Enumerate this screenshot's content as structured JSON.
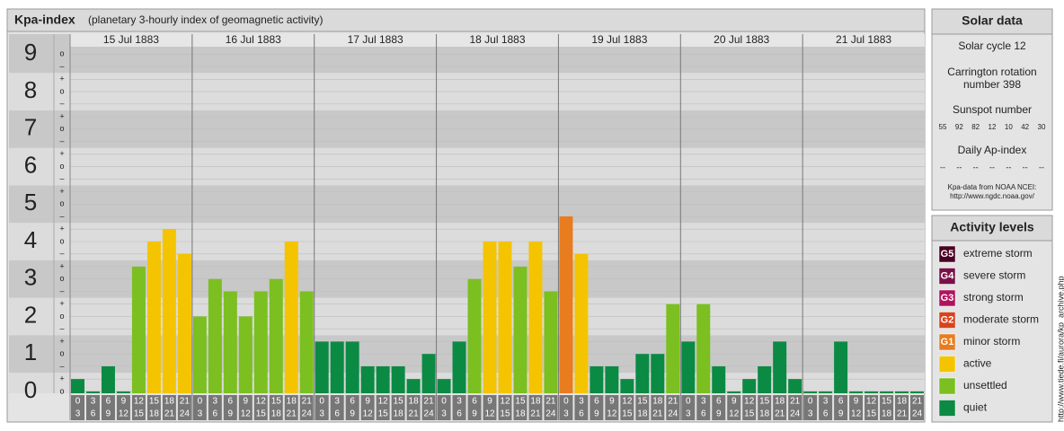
{
  "chart_data": {
    "type": "bar",
    "title": "Kpa-index",
    "subtitle": "(planetary 3-hourly index of geomagnetic activity)",
    "days": [
      "15 Jul 1883",
      "16 Jul 1883",
      "17 Jul 1883",
      "18 Jul 1883",
      "19 Jul 1883",
      "20 Jul 1883",
      "21 Jul 1883"
    ],
    "interval_starts": [
      0,
      3,
      6,
      9,
      12,
      15,
      18,
      21
    ],
    "interval_ends": [
      3,
      6,
      9,
      12,
      15,
      18,
      21,
      24
    ],
    "values": [
      0.33,
      0,
      0.67,
      0,
      3.33,
      4,
      4.33,
      3.67,
      2,
      3,
      2.67,
      2,
      2.67,
      3,
      4,
      2.67,
      1.33,
      1.33,
      1.33,
      0.67,
      0.67,
      0.67,
      0.33,
      1,
      0.33,
      1.33,
      3,
      4,
      4,
      3.33,
      4,
      2.67,
      4.67,
      3.67,
      0.67,
      0.67,
      0.33,
      1,
      1,
      2.33,
      1.33,
      2.33,
      0.67,
      0,
      0.33,
      0.67,
      1.33,
      0.33,
      0,
      0,
      1.33,
      0,
      0,
      0,
      0,
      0
    ],
    "colors": [
      "#0b8a44",
      "#0b8a44",
      "#0b8a44",
      "#0b8a44",
      "#7bbf20",
      "#f5c400",
      "#f5c400",
      "#f5c400",
      "#7bbf20",
      "#7bbf20",
      "#7bbf20",
      "#7bbf20",
      "#7bbf20",
      "#7bbf20",
      "#f5c400",
      "#7bbf20",
      "#0b8a44",
      "#0b8a44",
      "#0b8a44",
      "#0b8a44",
      "#0b8a44",
      "#0b8a44",
      "#0b8a44",
      "#0b8a44",
      "#0b8a44",
      "#0b8a44",
      "#7bbf20",
      "#f5c400",
      "#f5c400",
      "#7bbf20",
      "#f5c400",
      "#7bbf20",
      "#e87c1e",
      "#f5c400",
      "#0b8a44",
      "#0b8a44",
      "#0b8a44",
      "#0b8a44",
      "#0b8a44",
      "#7bbf20",
      "#0b8a44",
      "#7bbf20",
      "#0b8a44",
      "#0b8a44",
      "#0b8a44",
      "#0b8a44",
      "#0b8a44",
      "#0b8a44",
      "#0b8a44",
      "#0b8a44",
      "#0b8a44",
      "#0b8a44",
      "#0b8a44",
      "#0b8a44",
      "#0b8a44",
      "#0b8a44"
    ],
    "ylim": [
      -0.05,
      9.2
    ],
    "yticks": [
      0,
      1,
      2,
      3,
      4,
      5,
      6,
      7,
      8,
      9
    ],
    "minor_yticks": [
      {
        "value": 0,
        "label": "o"
      },
      {
        "value": 0.33,
        "label": "+"
      },
      {
        "value": 0.67,
        "label": "–"
      },
      {
        "value": 1,
        "label": "o"
      },
      {
        "value": 1.33,
        "label": "+"
      },
      {
        "value": 1.67,
        "label": "–"
      },
      {
        "value": 2,
        "label": "o"
      },
      {
        "value": 2.33,
        "label": "+"
      },
      {
        "value": 2.67,
        "label": "–"
      },
      {
        "value": 3,
        "label": "o"
      },
      {
        "value": 3.33,
        "label": "+"
      },
      {
        "value": 3.67,
        "label": "–"
      },
      {
        "value": 4,
        "label": "o"
      },
      {
        "value": 4.33,
        "label": "+"
      },
      {
        "value": 4.67,
        "label": "–"
      },
      {
        "value": 5,
        "label": "o"
      },
      {
        "value": 5.33,
        "label": "+"
      },
      {
        "value": 5.67,
        "label": "–"
      },
      {
        "value": 6,
        "label": "o"
      },
      {
        "value": 6.33,
        "label": "+"
      },
      {
        "value": 6.67,
        "label": "–"
      },
      {
        "value": 7,
        "label": "o"
      },
      {
        "value": 7.33,
        "label": "+"
      },
      {
        "value": 7.67,
        "label": "–"
      },
      {
        "value": 8,
        "label": "o"
      },
      {
        "value": 8.33,
        "label": "+"
      },
      {
        "value": 8.67,
        "label": "–"
      },
      {
        "value": 9,
        "label": "o"
      }
    ],
    "grid": true
  },
  "solar_data": {
    "title": "Solar data",
    "cycle": "Solar cycle 12",
    "carrington": [
      "Carrington rotation",
      "number 398"
    ],
    "sunspot_title": "Sunspot number",
    "sunspot_numbers": [
      55,
      92,
      82,
      12,
      10,
      42,
      30
    ],
    "ap_title": "Daily Ap-index",
    "ap_values": [
      "--",
      "--",
      "--",
      "--",
      "--",
      "--",
      "--"
    ],
    "source": [
      "Kpa-data from NOAA NCEI:",
      "http://www.ngdc.noaa.gov/"
    ]
  },
  "activity_levels": {
    "title": "Activity levels",
    "items": [
      {
        "code": "G5",
        "label": "extreme storm",
        "color": "#4b0023"
      },
      {
        "code": "G4",
        "label": "severe storm",
        "color": "#7a1048"
      },
      {
        "code": "G3",
        "label": "strong storm",
        "color": "#b0135e"
      },
      {
        "code": "G2",
        "label": "moderate storm",
        "color": "#d9421c"
      },
      {
        "code": "G1",
        "label": "minor storm",
        "color": "#e87c1e"
      },
      {
        "label": "active",
        "color": "#f5c400"
      },
      {
        "label": "unsettled",
        "color": "#7bbf20"
      },
      {
        "label": "quiet",
        "color": "#0b8a44"
      }
    ]
  },
  "side_url": "http://www.tiede.fi/aurora/kp_archive.php"
}
